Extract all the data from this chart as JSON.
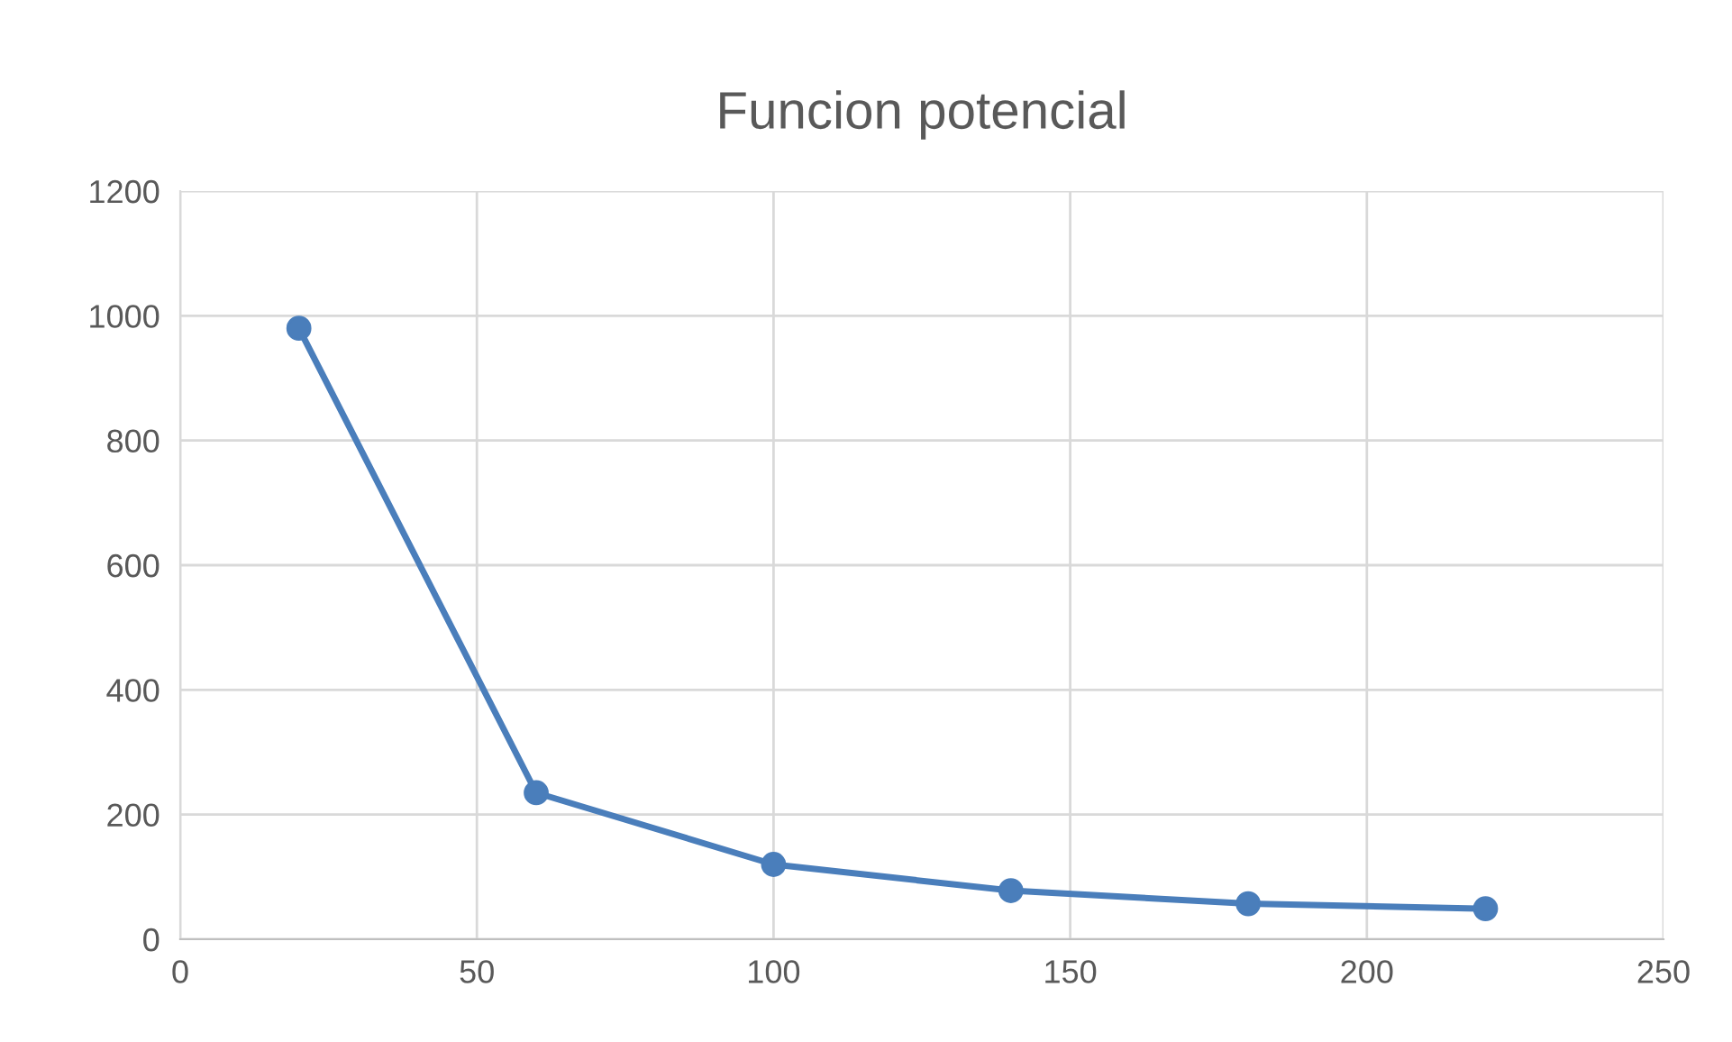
{
  "chart_data": {
    "type": "line",
    "title": "Funcion potencial",
    "x": [
      20,
      60,
      100,
      140,
      180,
      220
    ],
    "series": [
      {
        "color": "#4a7ebb",
        "values": [
          980,
          235,
          120,
          78,
          57,
          49
        ]
      }
    ],
    "xlim": [
      0,
      250
    ],
    "xticks": [
      0,
      50,
      100,
      150,
      200,
      250
    ],
    "ylim": [
      0,
      1200
    ],
    "yticks": [
      0,
      200,
      400,
      600,
      800,
      1000,
      1200
    ],
    "grid": true,
    "marker": "circle",
    "line_style": "solid"
  }
}
